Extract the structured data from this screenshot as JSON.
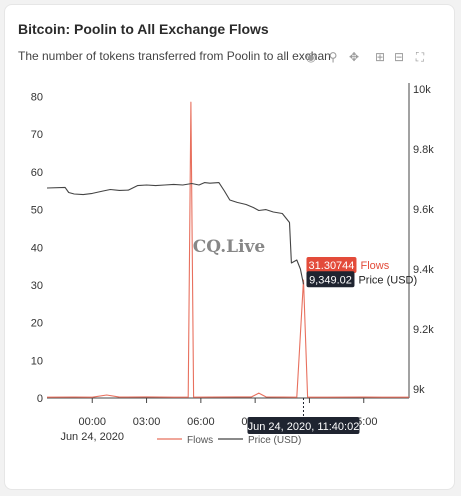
{
  "header": {
    "title": "Bitcoin: Poolin to All Exchange Flows",
    "subtitle": "The number of tokens transferred from Poolin to all exchanges"
  },
  "toolbar": {
    "icons": [
      "camera-icon",
      "zoom-icon",
      "pan-icon",
      "zoom-in-icon",
      "zoom-out-icon",
      "autoscale-icon"
    ]
  },
  "watermark": "CQ.Live",
  "colors": {
    "flows": "#e8705e",
    "price": "#444444",
    "flows_label_bg": "#e34b3a",
    "price_label_bg": "#1f2430",
    "date_label_bg": "#1f2430",
    "axis_line": "#444444"
  },
  "hover": {
    "flows_value": "31.30744",
    "flows_series": "Flows",
    "price_value": "9,349.02",
    "price_series": "Price (USD)",
    "x_label": "Jun 24, 2020, 11:40:02"
  },
  "chart_data": {
    "type": "line",
    "x_ticks": [
      "00:00",
      "03:00",
      "06:00",
      "09:00",
      "12:00",
      "15:00"
    ],
    "x_date_label": "Jun 24, 2020",
    "x_range_hours": [
      -2.5,
      17.5
    ],
    "y_left": {
      "ticks": [
        0,
        10,
        20,
        30,
        40,
        50,
        60,
        70,
        80
      ],
      "range": [
        0,
        82
      ]
    },
    "y_right": {
      "ticks": [
        "9k",
        "9.2k",
        "9.4k",
        "9.6k",
        "9.8k",
        "10k"
      ],
      "range": [
        8970,
        10000
      ]
    },
    "series": [
      {
        "name": "Flows",
        "axis": "left",
        "points": [
          [
            -2.5,
            0.2
          ],
          [
            -1.0,
            0.25
          ],
          [
            0.0,
            0.2
          ],
          [
            0.8,
            0.8
          ],
          [
            1.5,
            0.25
          ],
          [
            3.0,
            0.3
          ],
          [
            4.5,
            0.2
          ],
          [
            5.3,
            0.2
          ],
          [
            5.45,
            78.5
          ],
          [
            5.6,
            0.2
          ],
          [
            6.5,
            0.25
          ],
          [
            8.0,
            0.3
          ],
          [
            8.8,
            0.3
          ],
          [
            9.2,
            1.3
          ],
          [
            9.6,
            0.3
          ],
          [
            10.5,
            0.25
          ],
          [
            11.3,
            0.2
          ],
          [
            11.67,
            31.30744
          ],
          [
            11.9,
            0.2
          ],
          [
            13.0,
            0.2
          ],
          [
            15.0,
            0.25
          ],
          [
            17.5,
            0.2
          ]
        ]
      },
      {
        "name": "Price (USD)",
        "axis": "right",
        "points": [
          [
            -2.5,
            9670
          ],
          [
            -1.5,
            9672
          ],
          [
            -1.3,
            9655
          ],
          [
            -1.0,
            9650
          ],
          [
            -0.5,
            9648
          ],
          [
            0.0,
            9652
          ],
          [
            0.6,
            9660
          ],
          [
            1.0,
            9665
          ],
          [
            1.5,
            9662
          ],
          [
            2.0,
            9663
          ],
          [
            2.5,
            9678
          ],
          [
            3.0,
            9680
          ],
          [
            3.5,
            9678
          ],
          [
            4.0,
            9680
          ],
          [
            4.5,
            9682
          ],
          [
            5.0,
            9680
          ],
          [
            5.5,
            9685
          ],
          [
            5.9,
            9680
          ],
          [
            6.2,
            9688
          ],
          [
            6.5,
            9686
          ],
          [
            7.0,
            9688
          ],
          [
            7.3,
            9660
          ],
          [
            7.6,
            9630
          ],
          [
            8.0,
            9622
          ],
          [
            8.5,
            9615
          ],
          [
            8.9,
            9605
          ],
          [
            9.2,
            9595
          ],
          [
            9.6,
            9598
          ],
          [
            10.0,
            9590
          ],
          [
            10.5,
            9585
          ],
          [
            10.9,
            9555
          ],
          [
            11.0,
            9420
          ],
          [
            11.3,
            9430
          ],
          [
            11.5,
            9400
          ],
          [
            11.67,
            9349.02
          ]
        ]
      }
    ]
  }
}
